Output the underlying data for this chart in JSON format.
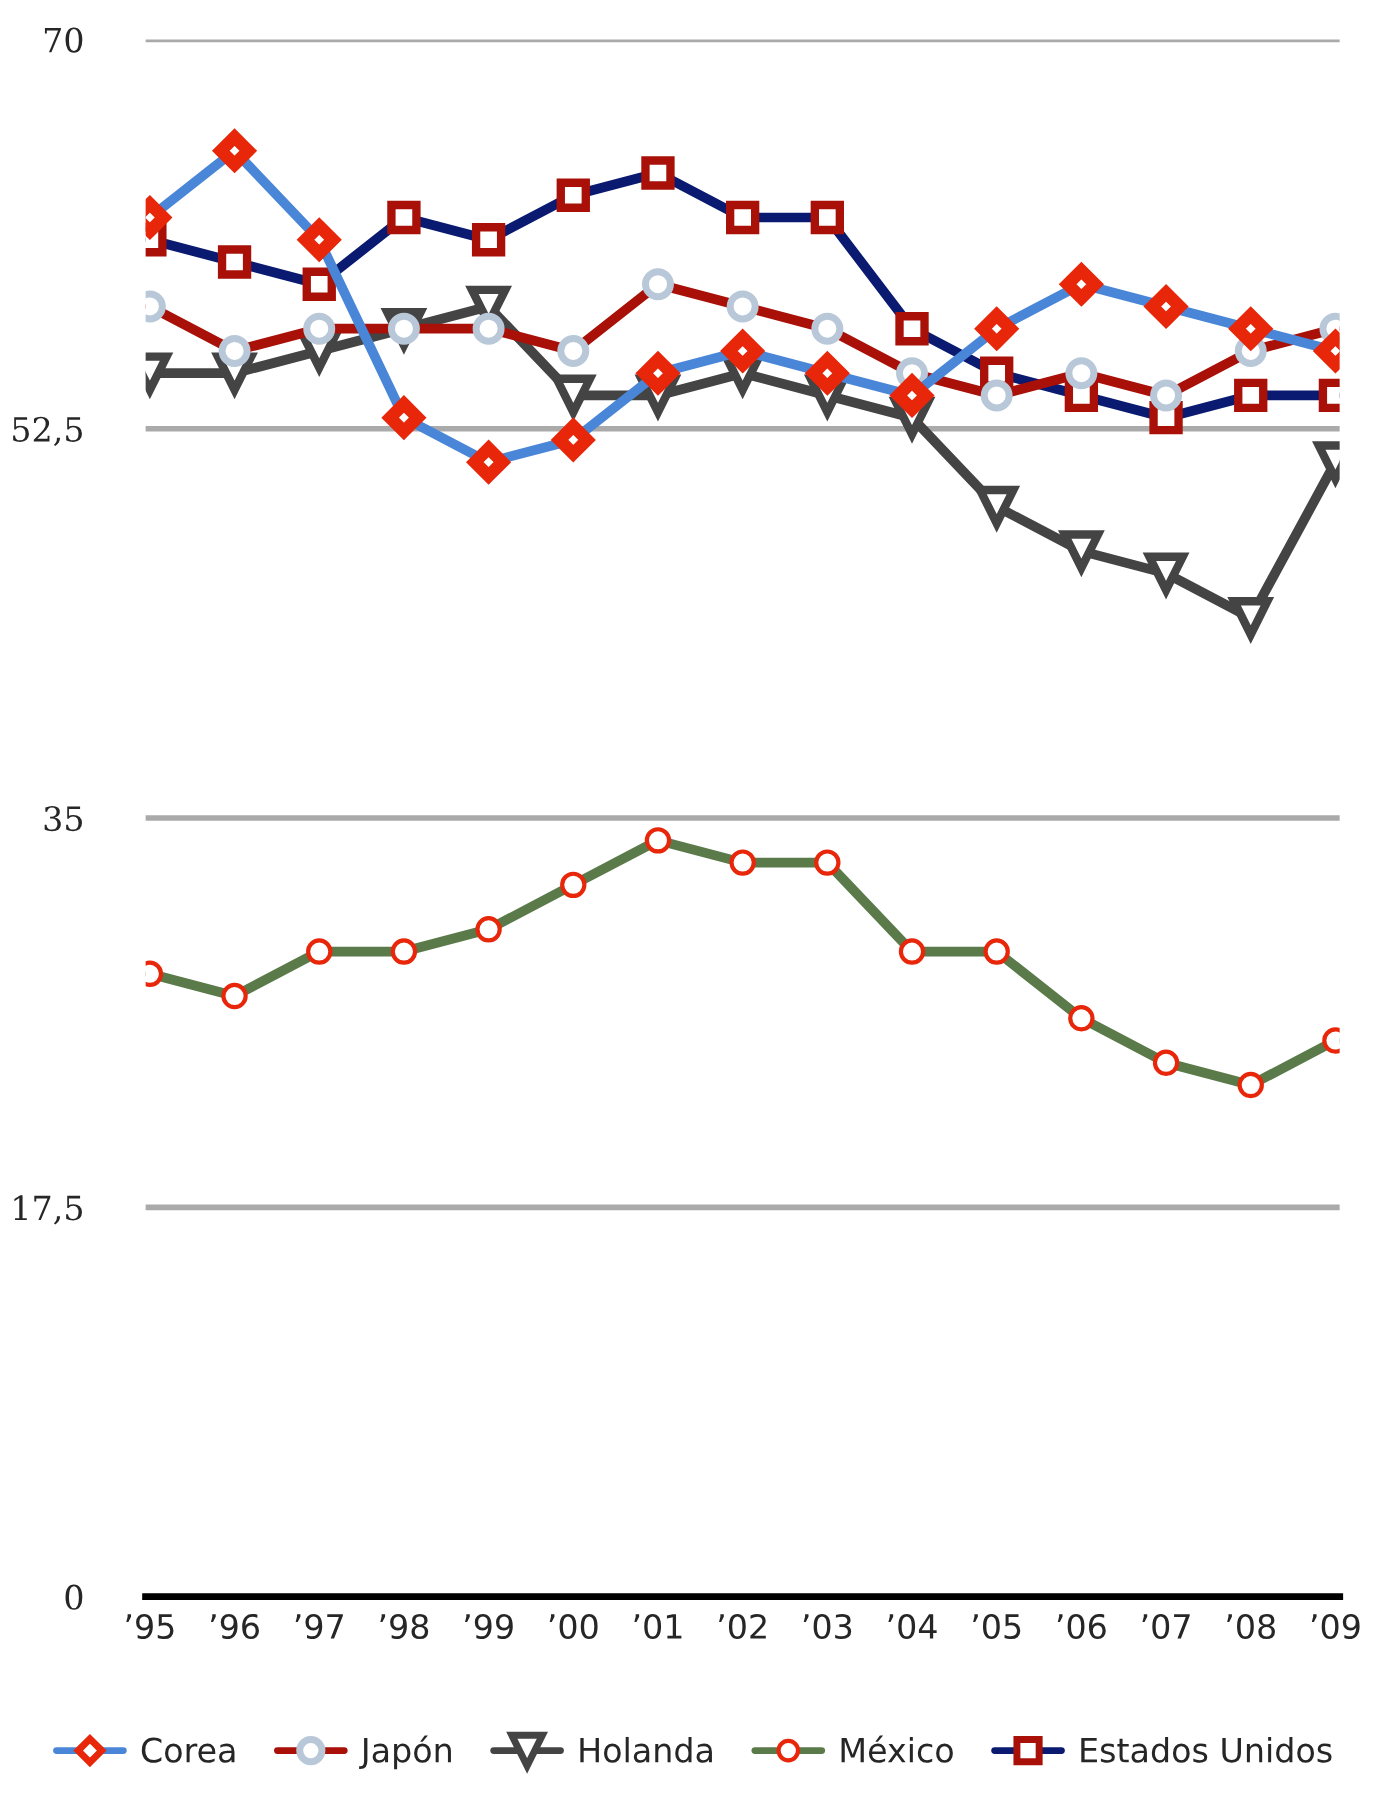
{
  "chart_data": {
    "type": "line",
    "categories": [
      "’95",
      "’96",
      "’97",
      "’98",
      "’99",
      "’00",
      "’01",
      "’02",
      "’03",
      "’04",
      "’05",
      "’06",
      "’07",
      "’08",
      "’09"
    ],
    "series": [
      {
        "name": "Corea",
        "color": "#4a86d8",
        "marker": "diamond",
        "values": [
          62,
          65,
          61,
          53,
          51,
          52,
          55,
          56,
          55,
          54,
          57,
          59,
          58,
          57,
          56
        ]
      },
      {
        "name": "Japón",
        "color": "#a81008",
        "marker": "circle",
        "values": [
          58,
          56,
          57,
          57,
          57,
          56,
          59,
          58,
          57,
          55,
          54,
          55,
          54,
          56,
          57
        ]
      },
      {
        "name": "Holanda",
        "color": "#444444",
        "marker": "triangle",
        "values": [
          55,
          55,
          56,
          57,
          58,
          54,
          54,
          55,
          54,
          53,
          49,
          47,
          46,
          44,
          51
        ]
      },
      {
        "name": "México",
        "color": "#5a7a4a",
        "marker": "circle",
        "values": [
          28,
          27,
          29,
          29,
          30,
          32,
          34,
          33,
          33,
          29,
          29,
          26,
          24,
          23,
          25
        ]
      },
      {
        "name": "Estados Unidos",
        "color": "#0a1a70",
        "marker": "square",
        "values": [
          61,
          60,
          59,
          62,
          61,
          63,
          64,
          62,
          62,
          57,
          55,
          54,
          53,
          54,
          54
        ]
      }
    ],
    "ylim": [
      0,
      70
    ],
    "yticks": [
      0,
      {
        "value": 17.5,
        "label": "17,5"
      },
      35,
      {
        "value": 52.5,
        "label": "52,5"
      },
      70
    ],
    "grid": "y",
    "legend": "bottom",
    "line_style": "solid"
  }
}
